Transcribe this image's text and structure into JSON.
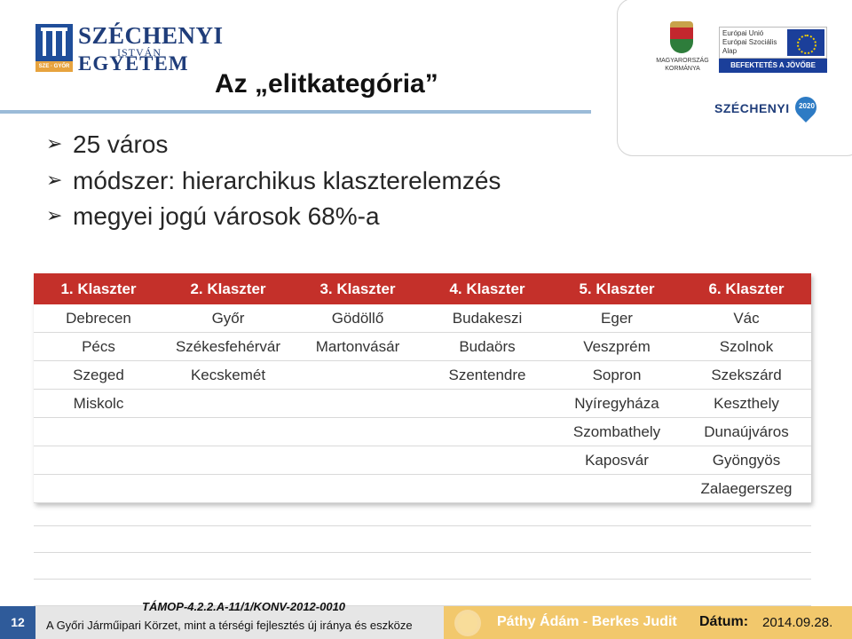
{
  "logo": {
    "line1": "SZÉCHENYI",
    "line2": "ISTVÁN",
    "line3": "EGYETEM",
    "badge": "SZE · GYŐR"
  },
  "title": "Az „elitkategória”",
  "header_right": {
    "gov_line1": "MAGYARORSZÁG",
    "gov_line2": "KORMÁNYA",
    "eu_line1": "Európai Unió",
    "eu_line2": "Európai Szociális",
    "eu_line3": "Alap",
    "invest": "BEFEKTETÉS A JÖVŐBE",
    "program": "SZÉCHENYI",
    "program_year": "2020"
  },
  "bullets": [
    "25 város",
    "módszer: hierarchikus klaszterelemzés",
    "megyei jogú városok 68%-a"
  ],
  "table": {
    "headers": [
      "1. Klaszter",
      "2. Klaszter",
      "3. Klaszter",
      "4. Klaszter",
      "5. Klaszter",
      "6. Klaszter"
    ],
    "rows": [
      [
        "Debrecen",
        "Győr",
        "Gödöllő",
        "Budakeszi",
        "Eger",
        "Vác"
      ],
      [
        "Pécs",
        "Székesfehérvár",
        "Martonvásár",
        "Budaörs",
        "Veszprém",
        "Szolnok"
      ],
      [
        "Szeged",
        "Kecskemét",
        "",
        "Szentendre",
        "Sopron",
        "Szekszárd"
      ],
      [
        "Miskolc",
        "",
        "",
        "",
        "Nyíregyháza",
        "Keszthely"
      ],
      [
        "",
        "",
        "",
        "",
        "Szombathely",
        "Dunaújváros"
      ],
      [
        "",
        "",
        "",
        "",
        "Kaposvár",
        "Gyöngyös"
      ],
      [
        "",
        "",
        "",
        "",
        "",
        "Zalaegerszeg"
      ]
    ]
  },
  "footer": {
    "page_number": "12",
    "project_code": "TÁMOP-4.2.2.A-11/1/KONV-2012-0010",
    "project_title": "A Győri Járműipari Körzet, mint a térségi fejlesztés új iránya és eszköze",
    "authors": "Páthy Ádám - Berkes Judit",
    "date_label": "Dátum:",
    "date_value": "2014.09.28."
  },
  "colors": {
    "table_header": "#c4302a",
    "page_number_bg": "#2f5b9a",
    "footer_accent": "#f2c86c",
    "title_rule": "#9bbbd8"
  }
}
